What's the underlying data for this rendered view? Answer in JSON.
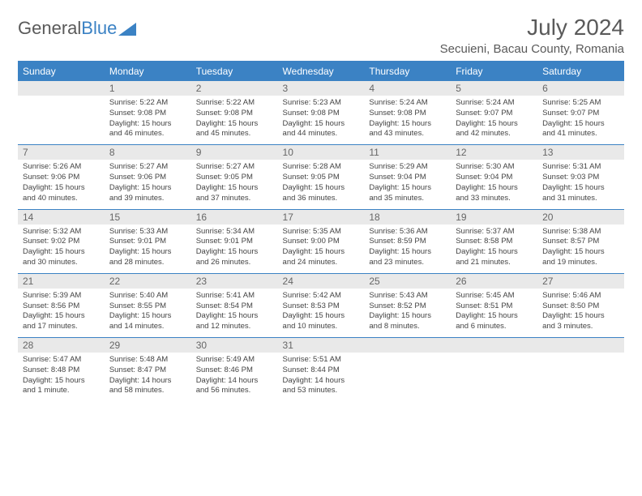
{
  "logo": {
    "text1": "General",
    "text2": "Blue"
  },
  "title": "July 2024",
  "subtitle": "Secuieni, Bacau County, Romania",
  "colors": {
    "brand_blue": "#3b82c4",
    "header_gray": "#e9e9e9",
    "text_gray": "#5a5a5a",
    "body_text": "#444444",
    "background": "#ffffff"
  },
  "day_names": [
    "Sunday",
    "Monday",
    "Tuesday",
    "Wednesday",
    "Thursday",
    "Friday",
    "Saturday"
  ],
  "weeks": [
    {
      "nums": [
        "",
        "1",
        "2",
        "3",
        "4",
        "5",
        "6"
      ],
      "cells": [
        null,
        {
          "sunrise": "Sunrise: 5:22 AM",
          "sunset": "Sunset: 9:08 PM",
          "day1": "Daylight: 15 hours",
          "day2": "and 46 minutes."
        },
        {
          "sunrise": "Sunrise: 5:22 AM",
          "sunset": "Sunset: 9:08 PM",
          "day1": "Daylight: 15 hours",
          "day2": "and 45 minutes."
        },
        {
          "sunrise": "Sunrise: 5:23 AM",
          "sunset": "Sunset: 9:08 PM",
          "day1": "Daylight: 15 hours",
          "day2": "and 44 minutes."
        },
        {
          "sunrise": "Sunrise: 5:24 AM",
          "sunset": "Sunset: 9:08 PM",
          "day1": "Daylight: 15 hours",
          "day2": "and 43 minutes."
        },
        {
          "sunrise": "Sunrise: 5:24 AM",
          "sunset": "Sunset: 9:07 PM",
          "day1": "Daylight: 15 hours",
          "day2": "and 42 minutes."
        },
        {
          "sunrise": "Sunrise: 5:25 AM",
          "sunset": "Sunset: 9:07 PM",
          "day1": "Daylight: 15 hours",
          "day2": "and 41 minutes."
        }
      ]
    },
    {
      "nums": [
        "7",
        "8",
        "9",
        "10",
        "11",
        "12",
        "13"
      ],
      "cells": [
        {
          "sunrise": "Sunrise: 5:26 AM",
          "sunset": "Sunset: 9:06 PM",
          "day1": "Daylight: 15 hours",
          "day2": "and 40 minutes."
        },
        {
          "sunrise": "Sunrise: 5:27 AM",
          "sunset": "Sunset: 9:06 PM",
          "day1": "Daylight: 15 hours",
          "day2": "and 39 minutes."
        },
        {
          "sunrise": "Sunrise: 5:27 AM",
          "sunset": "Sunset: 9:05 PM",
          "day1": "Daylight: 15 hours",
          "day2": "and 37 minutes."
        },
        {
          "sunrise": "Sunrise: 5:28 AM",
          "sunset": "Sunset: 9:05 PM",
          "day1": "Daylight: 15 hours",
          "day2": "and 36 minutes."
        },
        {
          "sunrise": "Sunrise: 5:29 AM",
          "sunset": "Sunset: 9:04 PM",
          "day1": "Daylight: 15 hours",
          "day2": "and 35 minutes."
        },
        {
          "sunrise": "Sunrise: 5:30 AM",
          "sunset": "Sunset: 9:04 PM",
          "day1": "Daylight: 15 hours",
          "day2": "and 33 minutes."
        },
        {
          "sunrise": "Sunrise: 5:31 AM",
          "sunset": "Sunset: 9:03 PM",
          "day1": "Daylight: 15 hours",
          "day2": "and 31 minutes."
        }
      ]
    },
    {
      "nums": [
        "14",
        "15",
        "16",
        "17",
        "18",
        "19",
        "20"
      ],
      "cells": [
        {
          "sunrise": "Sunrise: 5:32 AM",
          "sunset": "Sunset: 9:02 PM",
          "day1": "Daylight: 15 hours",
          "day2": "and 30 minutes."
        },
        {
          "sunrise": "Sunrise: 5:33 AM",
          "sunset": "Sunset: 9:01 PM",
          "day1": "Daylight: 15 hours",
          "day2": "and 28 minutes."
        },
        {
          "sunrise": "Sunrise: 5:34 AM",
          "sunset": "Sunset: 9:01 PM",
          "day1": "Daylight: 15 hours",
          "day2": "and 26 minutes."
        },
        {
          "sunrise": "Sunrise: 5:35 AM",
          "sunset": "Sunset: 9:00 PM",
          "day1": "Daylight: 15 hours",
          "day2": "and 24 minutes."
        },
        {
          "sunrise": "Sunrise: 5:36 AM",
          "sunset": "Sunset: 8:59 PM",
          "day1": "Daylight: 15 hours",
          "day2": "and 23 minutes."
        },
        {
          "sunrise": "Sunrise: 5:37 AM",
          "sunset": "Sunset: 8:58 PM",
          "day1": "Daylight: 15 hours",
          "day2": "and 21 minutes."
        },
        {
          "sunrise": "Sunrise: 5:38 AM",
          "sunset": "Sunset: 8:57 PM",
          "day1": "Daylight: 15 hours",
          "day2": "and 19 minutes."
        }
      ]
    },
    {
      "nums": [
        "21",
        "22",
        "23",
        "24",
        "25",
        "26",
        "27"
      ],
      "cells": [
        {
          "sunrise": "Sunrise: 5:39 AM",
          "sunset": "Sunset: 8:56 PM",
          "day1": "Daylight: 15 hours",
          "day2": "and 17 minutes."
        },
        {
          "sunrise": "Sunrise: 5:40 AM",
          "sunset": "Sunset: 8:55 PM",
          "day1": "Daylight: 15 hours",
          "day2": "and 14 minutes."
        },
        {
          "sunrise": "Sunrise: 5:41 AM",
          "sunset": "Sunset: 8:54 PM",
          "day1": "Daylight: 15 hours",
          "day2": "and 12 minutes."
        },
        {
          "sunrise": "Sunrise: 5:42 AM",
          "sunset": "Sunset: 8:53 PM",
          "day1": "Daylight: 15 hours",
          "day2": "and 10 minutes."
        },
        {
          "sunrise": "Sunrise: 5:43 AM",
          "sunset": "Sunset: 8:52 PM",
          "day1": "Daylight: 15 hours",
          "day2": "and 8 minutes."
        },
        {
          "sunrise": "Sunrise: 5:45 AM",
          "sunset": "Sunset: 8:51 PM",
          "day1": "Daylight: 15 hours",
          "day2": "and 6 minutes."
        },
        {
          "sunrise": "Sunrise: 5:46 AM",
          "sunset": "Sunset: 8:50 PM",
          "day1": "Daylight: 15 hours",
          "day2": "and 3 minutes."
        }
      ]
    },
    {
      "nums": [
        "28",
        "29",
        "30",
        "31",
        "",
        "",
        ""
      ],
      "cells": [
        {
          "sunrise": "Sunrise: 5:47 AM",
          "sunset": "Sunset: 8:48 PM",
          "day1": "Daylight: 15 hours",
          "day2": "and 1 minute."
        },
        {
          "sunrise": "Sunrise: 5:48 AM",
          "sunset": "Sunset: 8:47 PM",
          "day1": "Daylight: 14 hours",
          "day2": "and 58 minutes."
        },
        {
          "sunrise": "Sunrise: 5:49 AM",
          "sunset": "Sunset: 8:46 PM",
          "day1": "Daylight: 14 hours",
          "day2": "and 56 minutes."
        },
        {
          "sunrise": "Sunrise: 5:51 AM",
          "sunset": "Sunset: 8:44 PM",
          "day1": "Daylight: 14 hours",
          "day2": "and 53 minutes."
        },
        null,
        null,
        null
      ]
    }
  ]
}
